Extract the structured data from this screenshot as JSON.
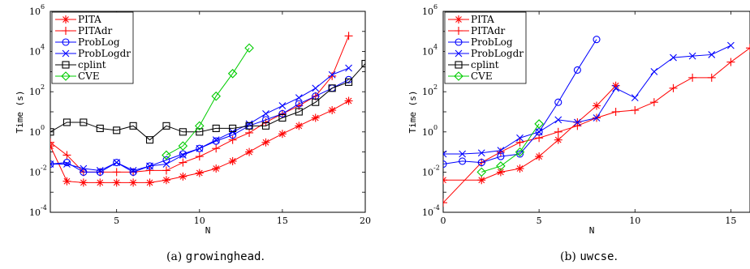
{
  "chart_data": [
    {
      "type": "line",
      "caption_prefix": "(a)",
      "caption_name": "growinghead",
      "caption_suffix": ".",
      "xlabel": "N",
      "ylabel": "Time (s)",
      "xlim": [
        1,
        20
      ],
      "ylim": [
        0.0001,
        1000000
      ],
      "yscale": "log",
      "xticks": [
        5,
        10,
        15,
        20
      ],
      "legend_placement": "top-left",
      "series": [
        {
          "name": "PITA",
          "color": "#ff0000",
          "marker": "asterisk",
          "x": [
            1,
            2,
            3,
            4,
            5,
            6,
            7,
            8,
            9,
            10,
            11,
            12,
            13,
            14,
            15,
            16,
            17,
            18,
            19
          ],
          "y": [
            0.2,
            0.0035,
            0.003,
            0.003,
            0.003,
            0.003,
            0.003,
            0.004,
            0.006,
            0.009,
            0.015,
            0.035,
            0.1,
            0.3,
            0.8,
            2,
            5,
            12,
            35
          ]
        },
        {
          "name": "PITAdr",
          "color": "#ff0000",
          "marker": "plus",
          "x": [
            1,
            2,
            3,
            4,
            5,
            6,
            7,
            8,
            9,
            10,
            11,
            12,
            13,
            14,
            15,
            16,
            17,
            18,
            19
          ],
          "y": [
            0.3,
            0.07,
            0.01,
            0.01,
            0.01,
            0.01,
            0.012,
            0.012,
            0.03,
            0.06,
            0.15,
            0.4,
            0.9,
            3,
            8,
            20,
            60,
            600,
            60000
          ]
        },
        {
          "name": "ProbLog",
          "color": "#0000ff",
          "marker": "circle",
          "x": [
            1,
            2,
            3,
            4,
            5,
            6,
            7,
            8,
            9,
            10,
            11,
            12,
            13,
            14,
            15,
            16,
            17,
            18,
            19
          ],
          "y": [
            0.025,
            0.03,
            0.01,
            0.01,
            0.03,
            0.01,
            0.02,
            0.04,
            0.08,
            0.15,
            0.35,
            0.7,
            2,
            4,
            8,
            25,
            60,
            150,
            400
          ]
        },
        {
          "name": "ProbLogdr",
          "color": "#0000ff",
          "marker": "cross",
          "x": [
            1,
            2,
            3,
            4,
            5,
            6,
            7,
            8,
            9,
            10,
            11,
            12,
            13,
            14,
            15,
            16,
            17,
            18,
            19
          ],
          "y": [
            0.025,
            0.025,
            0.015,
            0.012,
            0.03,
            0.012,
            0.02,
            0.025,
            0.07,
            0.15,
            0.4,
            1,
            2.5,
            8,
            20,
            50,
            150,
            700,
            1500
          ]
        },
        {
          "name": "cplint",
          "color": "#000000",
          "marker": "square",
          "x": [
            1,
            2,
            3,
            4,
            5,
            6,
            7,
            8,
            9,
            10,
            11,
            12,
            13,
            14,
            15,
            16,
            17,
            18,
            19,
            20
          ],
          "y": [
            1,
            3,
            3,
            1.5,
            1.2,
            2,
            0.4,
            2,
            1,
            1,
            1.5,
            1.5,
            2,
            2,
            5,
            10,
            30,
            150,
            300,
            2500
          ]
        },
        {
          "name": "CVE",
          "color": "#00cc00",
          "marker": "diamond",
          "x": [
            8,
            9,
            10,
            11,
            12,
            13
          ],
          "y": [
            0.07,
            0.2,
            2,
            60,
            800,
            15000
          ]
        }
      ]
    },
    {
      "type": "line",
      "caption_prefix": "(b)",
      "caption_name": "uwcse",
      "caption_suffix": ".",
      "xlabel": "N",
      "ylabel": "Time (s)",
      "xlim": [
        0,
        16
      ],
      "ylim": [
        0.0001,
        1000000
      ],
      "yscale": "log",
      "xticks": [
        0,
        5,
        10,
        15
      ],
      "legend_placement": "top-left",
      "series": [
        {
          "name": "PITA",
          "color": "#ff0000",
          "marker": "asterisk",
          "x": [
            0,
            2,
            3,
            4,
            5,
            6,
            7,
            8,
            9
          ],
          "y": [
            0.004,
            0.004,
            0.01,
            0.015,
            0.06,
            0.4,
            3,
            20,
            200
          ]
        },
        {
          "name": "PITAdr",
          "color": "#ff0000",
          "marker": "plus",
          "x": [
            0,
            2,
            3,
            4,
            5,
            6,
            7,
            8,
            9,
            10,
            11,
            12,
            13,
            14,
            15,
            16
          ],
          "y": [
            0.0003,
            0.03,
            0.1,
            0.3,
            0.5,
            1,
            2,
            5,
            10,
            12,
            30,
            150,
            500,
            500,
            3000,
            15000
          ]
        },
        {
          "name": "ProbLog",
          "color": "#0000ff",
          "marker": "circle",
          "x": [
            0,
            1,
            2,
            3,
            4,
            5,
            6,
            7,
            8
          ],
          "y": [
            0.025,
            0.035,
            0.03,
            0.06,
            0.08,
            1,
            30,
            1200,
            40000
          ]
        },
        {
          "name": "ProbLogdr",
          "color": "#0000ff",
          "marker": "cross",
          "x": [
            0,
            1,
            2,
            3,
            4,
            5,
            6,
            7,
            8,
            9,
            10,
            11,
            12,
            13,
            14,
            15
          ],
          "y": [
            0.08,
            0.08,
            0.09,
            0.12,
            0.5,
            1,
            4,
            3,
            5,
            150,
            50,
            1000,
            5000,
            6000,
            7000,
            20000
          ]
        },
        {
          "name": "cplint",
          "color": "#000000",
          "marker": "square",
          "x": [],
          "y": []
        },
        {
          "name": "CVE",
          "color": "#00cc00",
          "marker": "diamond",
          "x": [
            2,
            3,
            4,
            5
          ],
          "y": [
            0.01,
            0.02,
            0.1,
            2.5
          ]
        }
      ]
    }
  ]
}
